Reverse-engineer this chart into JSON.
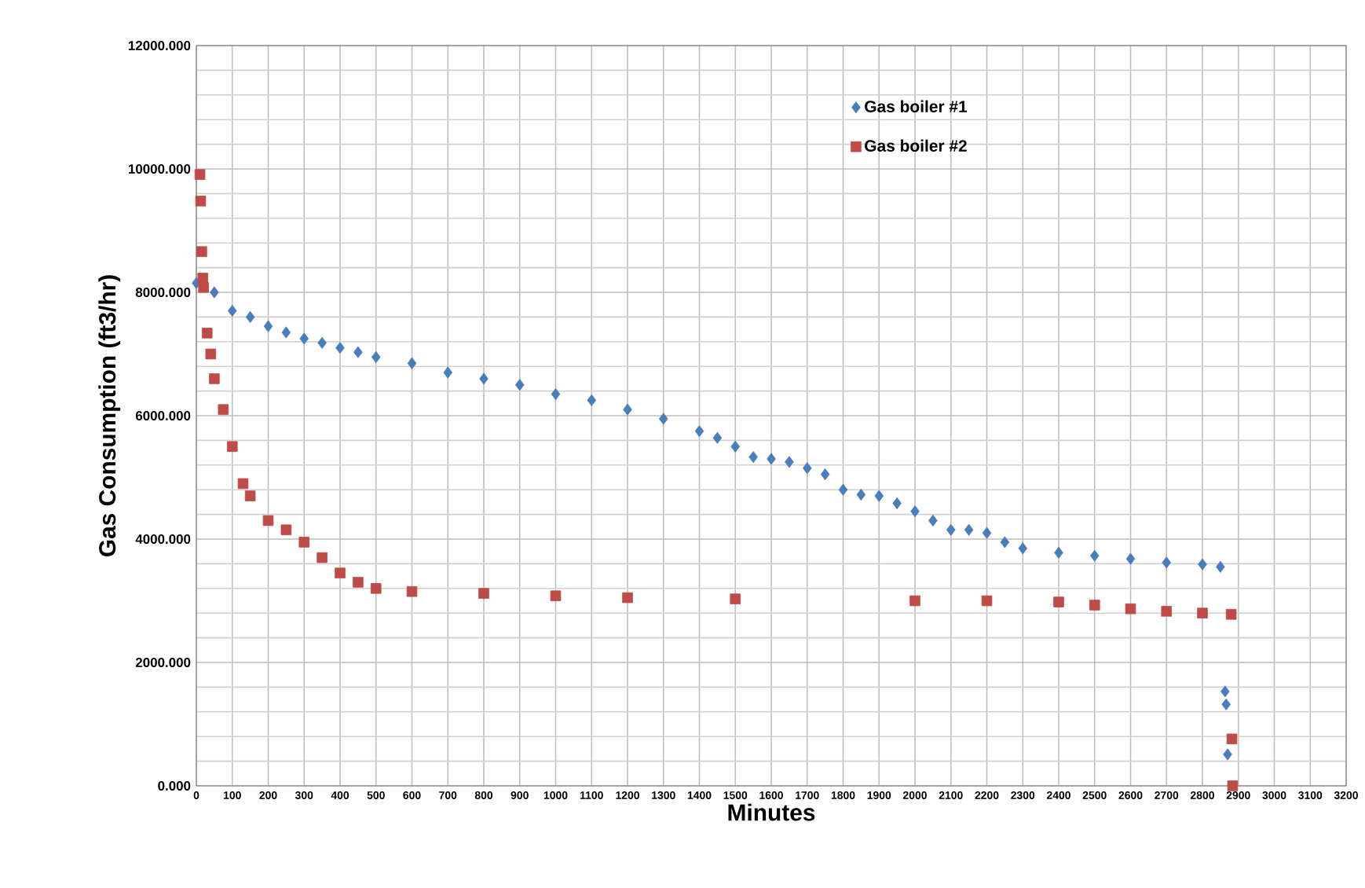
{
  "chart_data": {
    "type": "scatter",
    "xlabel": "Minutes",
    "ylabel": "Gas Consumption (ft3/hr)",
    "xlim": [
      0,
      3200
    ],
    "ylim": [
      0,
      12000
    ],
    "xticks": [
      0,
      100,
      200,
      300,
      400,
      500,
      600,
      700,
      800,
      900,
      1000,
      1100,
      1200,
      1300,
      1400,
      1500,
      1600,
      1700,
      1800,
      1900,
      2000,
      2100,
      2200,
      2300,
      2400,
      2500,
      2600,
      2700,
      2800,
      2900,
      3000,
      3100,
      3200
    ],
    "yticks": [
      {
        "value": 0,
        "label": "0.000"
      },
      {
        "value": 2000,
        "label": "2000.000"
      },
      {
        "value": 4000,
        "label": "4000.000"
      },
      {
        "value": 6000,
        "label": "6000.000"
      },
      {
        "value": 8000,
        "label": "8000.000"
      },
      {
        "value": 10000,
        "label": "10000.000"
      },
      {
        "value": 12000,
        "label": "12000.000"
      }
    ],
    "grid": true,
    "legend": "top right",
    "series": [
      {
        "name": "Gas boiler #1",
        "color": "#4a7ebb",
        "marker": "diamond",
        "x": [
          0,
          50,
          100,
          150,
          200,
          250,
          300,
          350,
          400,
          450,
          500,
          600,
          700,
          800,
          900,
          1000,
          1100,
          1200,
          1300,
          1400,
          1450,
          1500,
          1550,
          1600,
          1650,
          1700,
          1750,
          1800,
          1850,
          1900,
          1950,
          2000,
          2050,
          2100,
          2150,
          2200,
          2250,
          2300,
          2400,
          2500,
          2600,
          2700,
          2800,
          2850,
          2863,
          2866,
          2870
        ],
        "values": [
          8150,
          8000,
          7700,
          7600,
          7450,
          7350,
          7250,
          7180,
          7100,
          7030,
          6950,
          6850,
          6700,
          6600,
          6500,
          6350,
          6250,
          6100,
          5950,
          5750,
          5640,
          5500,
          5330,
          5300,
          5250,
          5150,
          5050,
          4800,
          4720,
          4700,
          4580,
          4450,
          4300,
          4150,
          4150,
          4100,
          3950,
          3850,
          3780,
          3730,
          3680,
          3620,
          3590,
          3550,
          1530,
          1320,
          510
        ]
      },
      {
        "name": "Gas boiler #2",
        "color": "#be4b48",
        "marker": "square",
        "x": [
          10,
          12,
          15,
          18,
          20,
          30,
          40,
          50,
          75,
          100,
          130,
          150,
          200,
          250,
          300,
          350,
          400,
          450,
          500,
          600,
          800,
          1000,
          1200,
          1500,
          2000,
          2200,
          2400,
          2500,
          2600,
          2700,
          2800,
          2880,
          2882,
          2884
        ],
        "values": [
          9910,
          9480,
          8660,
          8230,
          8080,
          7340,
          7000,
          6600,
          6100,
          5500,
          4900,
          4700,
          4300,
          4150,
          3950,
          3700,
          3450,
          3300,
          3200,
          3150,
          3120,
          3080,
          3050,
          3030,
          3000,
          3000,
          2980,
          2930,
          2870,
          2830,
          2800,
          2780,
          760,
          0
        ]
      }
    ]
  }
}
